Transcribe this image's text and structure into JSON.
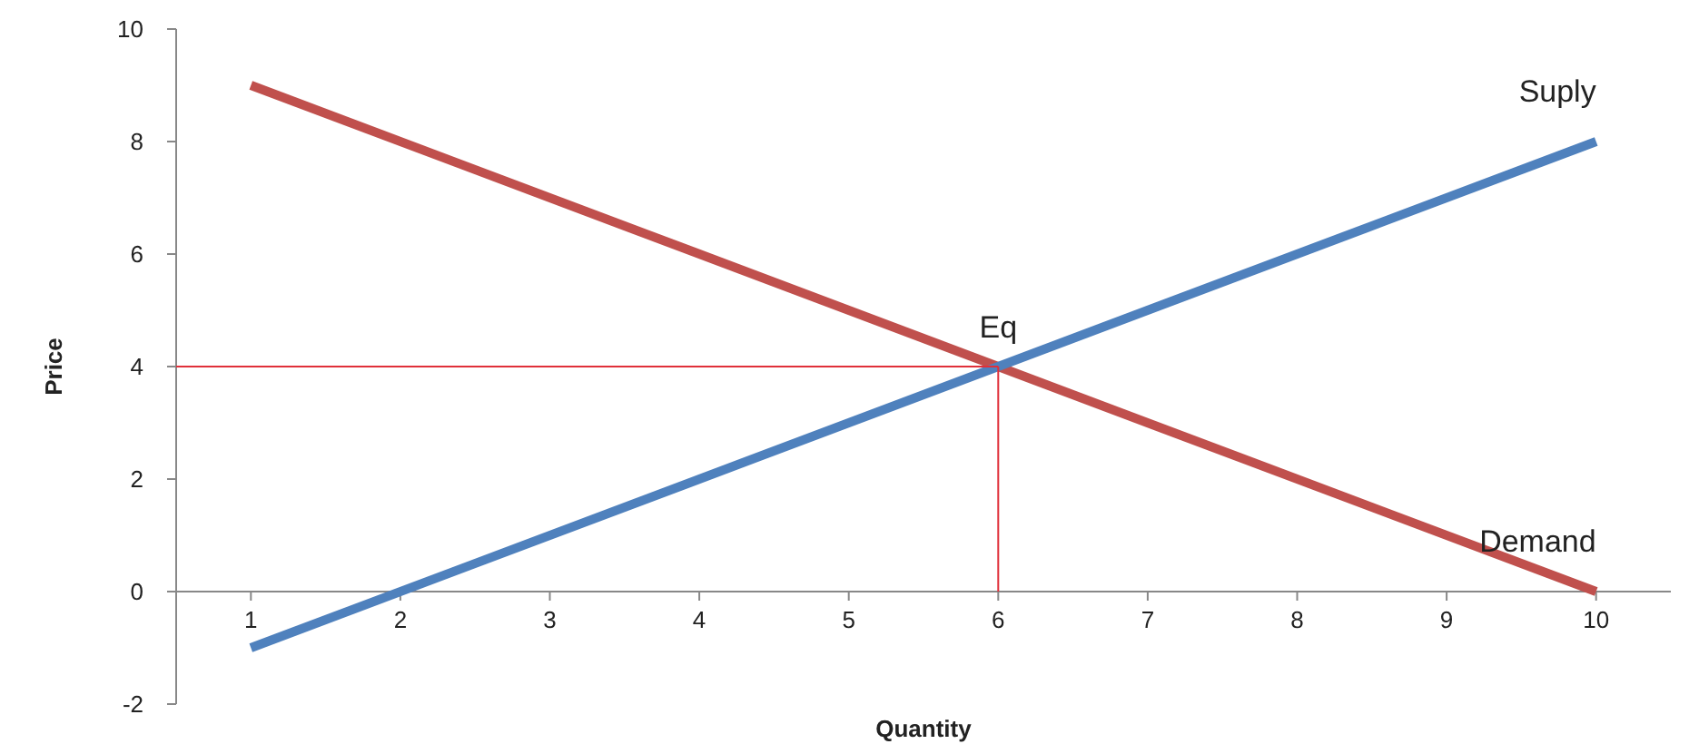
{
  "chart_data": {
    "type": "line",
    "xlabel": "Quantity",
    "ylabel": "Price",
    "xlim": [
      0.5,
      10.5
    ],
    "xticks": [
      1,
      2,
      3,
      4,
      5,
      6,
      7,
      8,
      9,
      10
    ],
    "ylim": [
      -2,
      10
    ],
    "yticks": [
      -2,
      0,
      2,
      4,
      6,
      8,
      10
    ],
    "marker": "none",
    "line_style": "solid",
    "series": [
      {
        "name": "Demand",
        "color": "#c0504d",
        "x": [
          1,
          10
        ],
        "values": [
          9,
          0
        ]
      },
      {
        "name": "Suply",
        "color": "#4f81bd",
        "x": [
          1,
          10
        ],
        "values": [
          -1,
          8
        ]
      },
      {
        "color": "#e0303a",
        "x": [
          0.5,
          6
        ],
        "values": [
          4,
          4
        ]
      },
      {
        "color": "#e0303a",
        "x": [
          6,
          6
        ],
        "values": [
          0,
          4
        ]
      }
    ],
    "annotations": [
      {
        "text": "Eq",
        "x": 6,
        "y": 4
      }
    ]
  }
}
